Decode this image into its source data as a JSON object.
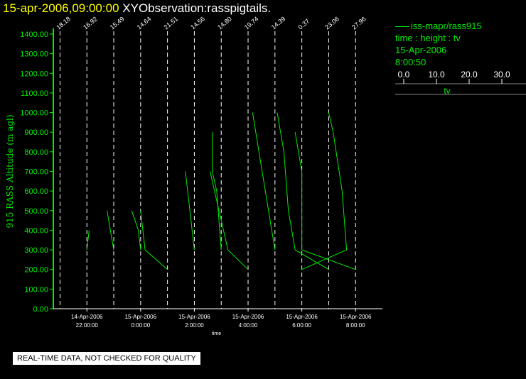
{
  "title": {
    "datetime": "15-apr-2006,09:00:00",
    "name": "XYObservation:rasspigtails."
  },
  "legend": {
    "series_label": "iss-mapr/rass915",
    "variables": "time : height : tv",
    "date": "15-Apr-2006",
    "time": "8:00:50",
    "scale_ticks": [
      "0.0",
      "10.0",
      "20.0",
      "30.0"
    ],
    "scale_values": [
      0,
      10,
      20,
      30
    ],
    "scale_label": "tv"
  },
  "note": "REAL-TIME DATA, NOT CHECKED FOR QUALITY",
  "colors": {
    "background": "#000000",
    "series": "#00ee00",
    "axis": "#00ee00",
    "text": "#ffffff",
    "date": "#ffff00"
  },
  "chart_data": {
    "type": "line",
    "ylabel": "915 RASS Altitude (m agl)",
    "xlabel": "time",
    "ylim": [
      0,
      1400
    ],
    "yticks": [
      "0.00",
      "100.00",
      "200.00",
      "300.00",
      "400.00",
      "500.00",
      "600.00",
      "700.00",
      "800.00",
      "900.00",
      "1000.00",
      "1100.00",
      "1200.00",
      "1300.00",
      "1400.00"
    ],
    "xlim": [
      "2006-04-14T20:45",
      "2006-04-15T09:00"
    ],
    "xticks": [
      {
        "t": "2006-04-14T22:00",
        "date": "14-Apr-2006",
        "time": "22:00:00"
      },
      {
        "t": "2006-04-15T00:00",
        "date": "15-Apr-2006",
        "time": "0:00:00"
      },
      {
        "t": "2006-04-15T02:00",
        "date": "15-Apr-2006",
        "time": "2:00:00"
      },
      {
        "t": "2006-04-15T04:00",
        "date": "15-Apr-2006",
        "time": "4:00:00"
      },
      {
        "t": "2006-04-15T06:00",
        "date": "15-Apr-2006",
        "time": "6:00:00"
      },
      {
        "t": "2006-04-15T08:00",
        "date": "15-Apr-2006",
        "time": "8:00:00"
      }
    ],
    "profiles": [
      {
        "t": "2006-04-14T21:00",
        "label": "18.18"
      },
      {
        "t": "2006-04-14T22:00",
        "label": "16.92"
      },
      {
        "t": "2006-04-14T23:00",
        "label": "15.49"
      },
      {
        "t": "2006-04-15T00:00",
        "label": "14.64"
      },
      {
        "t": "2006-04-15T01:00",
        "label": "21.51"
      },
      {
        "t": "2006-04-15T02:00",
        "label": "14.56"
      },
      {
        "t": "2006-04-15T03:00",
        "label": "14.80"
      },
      {
        "t": "2006-04-15T04:00",
        "label": "19.74"
      },
      {
        "t": "2006-04-15T05:00",
        "label": "14.39"
      },
      {
        "t": "2006-04-15T06:00",
        "label": "0.37"
      },
      {
        "t": "2006-04-15T07:00",
        "label": "23.06"
      },
      {
        "t": "2006-04-15T08:00",
        "label": "27.96"
      }
    ],
    "series": [
      {
        "points": [
          [
            "2006-04-14T22:05",
            400
          ],
          [
            "2006-04-14T22:00",
            300
          ]
        ]
      },
      {
        "points": [
          [
            "2006-04-14T22:45",
            500
          ],
          [
            "2006-04-14T23:00",
            300
          ]
        ]
      },
      {
        "points": [
          [
            "2006-04-14T23:40",
            500
          ],
          [
            "2006-04-14T23:55",
            400
          ],
          [
            "2006-04-15T00:00",
            300
          ]
        ]
      },
      {
        "points": [
          [
            "2006-04-15T00:00",
            500
          ],
          [
            "2006-04-15T00:05",
            400
          ],
          [
            "2006-04-15T00:10",
            300
          ],
          [
            "2006-04-15T01:00",
            200
          ]
        ]
      },
      {
        "points": [
          [
            "2006-04-15T01:40",
            700
          ],
          [
            "2006-04-15T01:45",
            600
          ],
          [
            "2006-04-15T02:00",
            300
          ]
        ]
      },
      {
        "points": [
          [
            "2006-04-15T02:40",
            900
          ],
          [
            "2006-04-15T02:40",
            700
          ],
          [
            "2006-04-15T02:50",
            600
          ],
          [
            "2006-04-15T03:00",
            300
          ]
        ]
      },
      {
        "points": [
          [
            "2006-04-15T02:35",
            700
          ],
          [
            "2006-04-15T02:55",
            500
          ],
          [
            "2006-04-15T03:15",
            300
          ],
          [
            "2006-04-15T04:00",
            200
          ]
        ]
      },
      {
        "points": [
          [
            "2006-04-15T04:10",
            1000
          ],
          [
            "2006-04-15T05:00",
            300
          ]
        ]
      },
      {
        "points": [
          [
            "2006-04-15T05:05",
            1000
          ],
          [
            "2006-04-15T05:20",
            800
          ],
          [
            "2006-04-15T05:30",
            500
          ],
          [
            "2006-04-15T05:45",
            300
          ],
          [
            "2006-04-15T07:00",
            200
          ]
        ]
      },
      {
        "points": [
          [
            "2006-04-15T05:45",
            900
          ],
          [
            "2006-04-15T06:00",
            700
          ],
          [
            "2006-04-15T06:00",
            300
          ],
          [
            "2006-04-15T08:00",
            200
          ]
        ]
      },
      {
        "points": [
          [
            "2006-04-15T07:00",
            1000
          ],
          [
            "2006-04-15T07:10",
            900
          ],
          [
            "2006-04-15T07:30",
            600
          ],
          [
            "2006-04-15T07:40",
            300
          ],
          [
            "2006-04-15T06:00",
            200
          ]
        ]
      }
    ]
  }
}
